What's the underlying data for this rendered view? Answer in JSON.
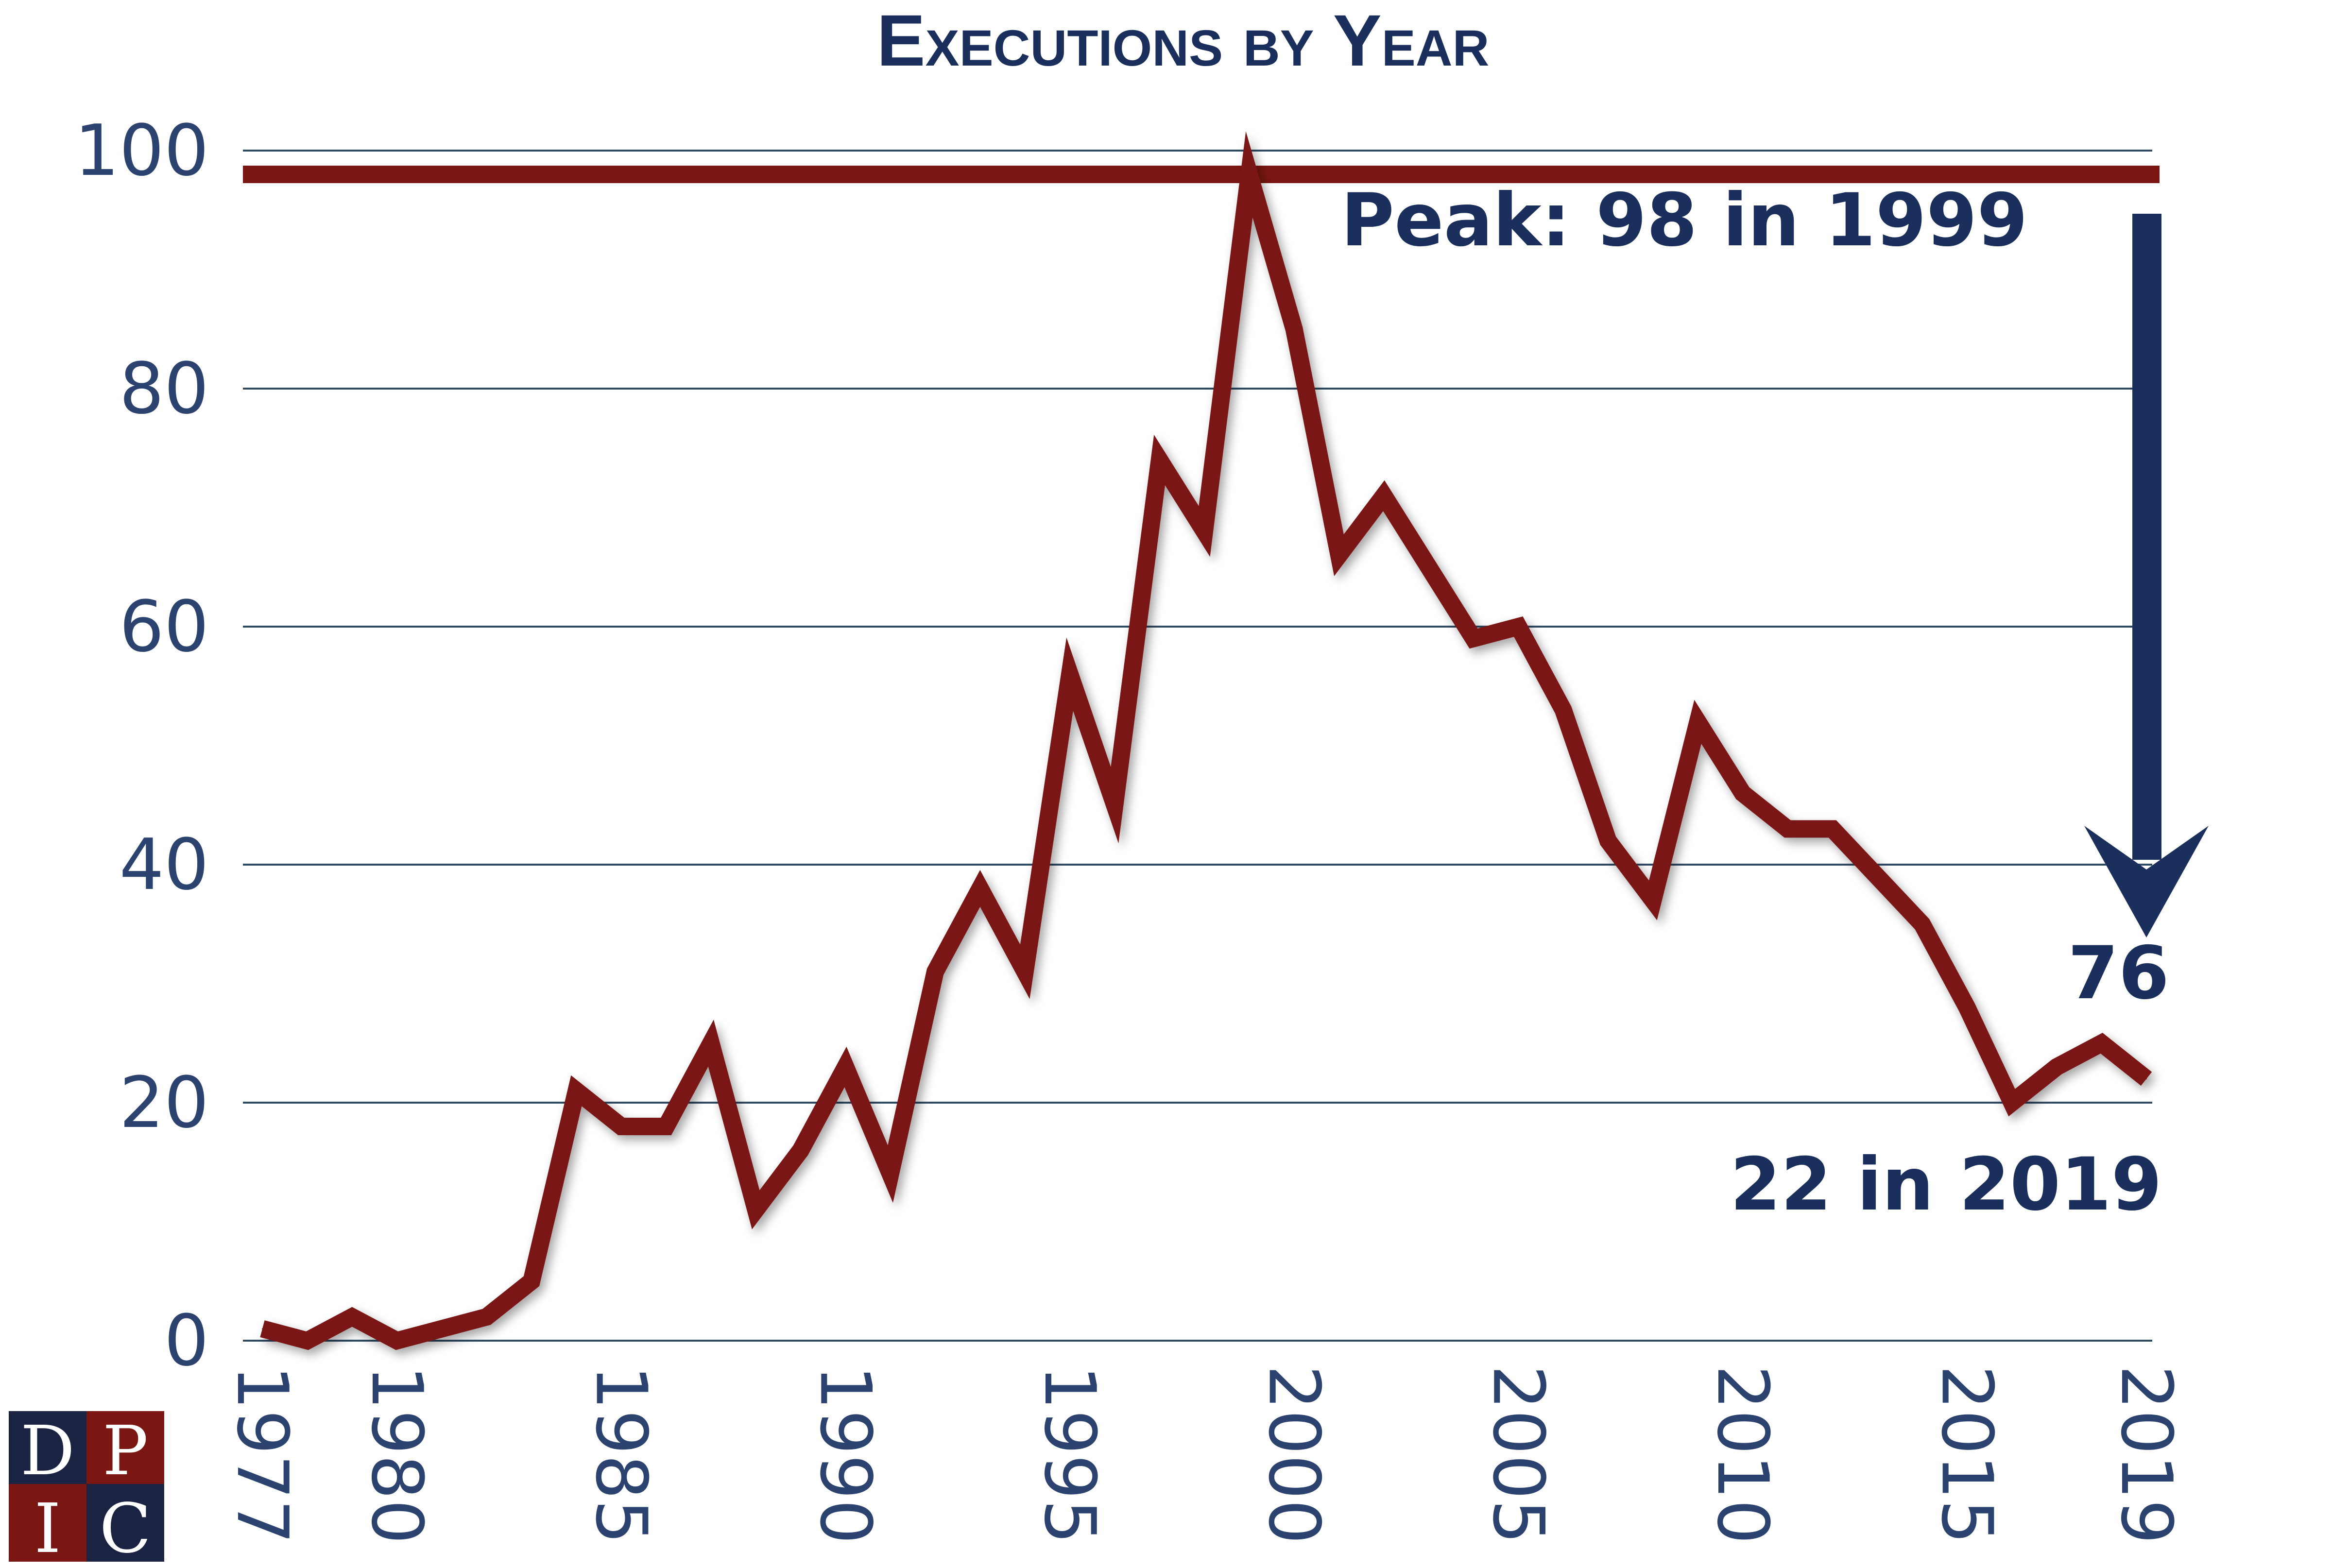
{
  "colors": {
    "line": "#7a1712",
    "navy": "#1b2f5c",
    "axis_text": "#2c4370",
    "grid": "#2f4a63",
    "logo_navy": "#1b2342",
    "logo_red": "#7a1712"
  },
  "logo": {
    "letters": [
      "D",
      "P",
      "I",
      "C"
    ]
  },
  "chart_data": {
    "type": "line",
    "title": "Executions by Year",
    "xlabel": "",
    "ylabel": "",
    "x": [
      1977,
      1978,
      1979,
      1980,
      1981,
      1982,
      1983,
      1984,
      1985,
      1986,
      1987,
      1988,
      1989,
      1990,
      1991,
      1992,
      1993,
      1994,
      1995,
      1996,
      1997,
      1998,
      1999,
      2000,
      2001,
      2002,
      2003,
      2004,
      2005,
      2006,
      2007,
      2008,
      2009,
      2010,
      2011,
      2012,
      2013,
      2014,
      2015,
      2016,
      2017,
      2018,
      2019
    ],
    "series": [
      {
        "name": "Executions",
        "values": [
          1,
          0,
          2,
          0,
          1,
          2,
          5,
          21,
          18,
          18,
          25,
          11,
          16,
          23,
          14,
          31,
          38,
          31,
          56,
          45,
          74,
          68,
          98,
          85,
          66,
          71,
          65,
          59,
          60,
          53,
          42,
          37,
          52,
          46,
          43,
          43,
          39,
          35,
          28,
          20,
          23,
          25,
          22
        ]
      }
    ],
    "xticks": [
      "1977",
      "1980",
      "1985",
      "1990",
      "1995",
      "2000",
      "2005",
      "2010",
      "2015",
      "2019"
    ],
    "yticks": [
      "0",
      "20",
      "40",
      "60",
      "80",
      "100"
    ],
    "ylim": [
      0,
      100
    ],
    "xlim": [
      1977,
      2019
    ],
    "grid": true,
    "reference_line": {
      "y": 98
    },
    "annotations": {
      "peak": "Peak: 98 in 1999",
      "latest": "22 in 2019",
      "decline": "76"
    }
  }
}
